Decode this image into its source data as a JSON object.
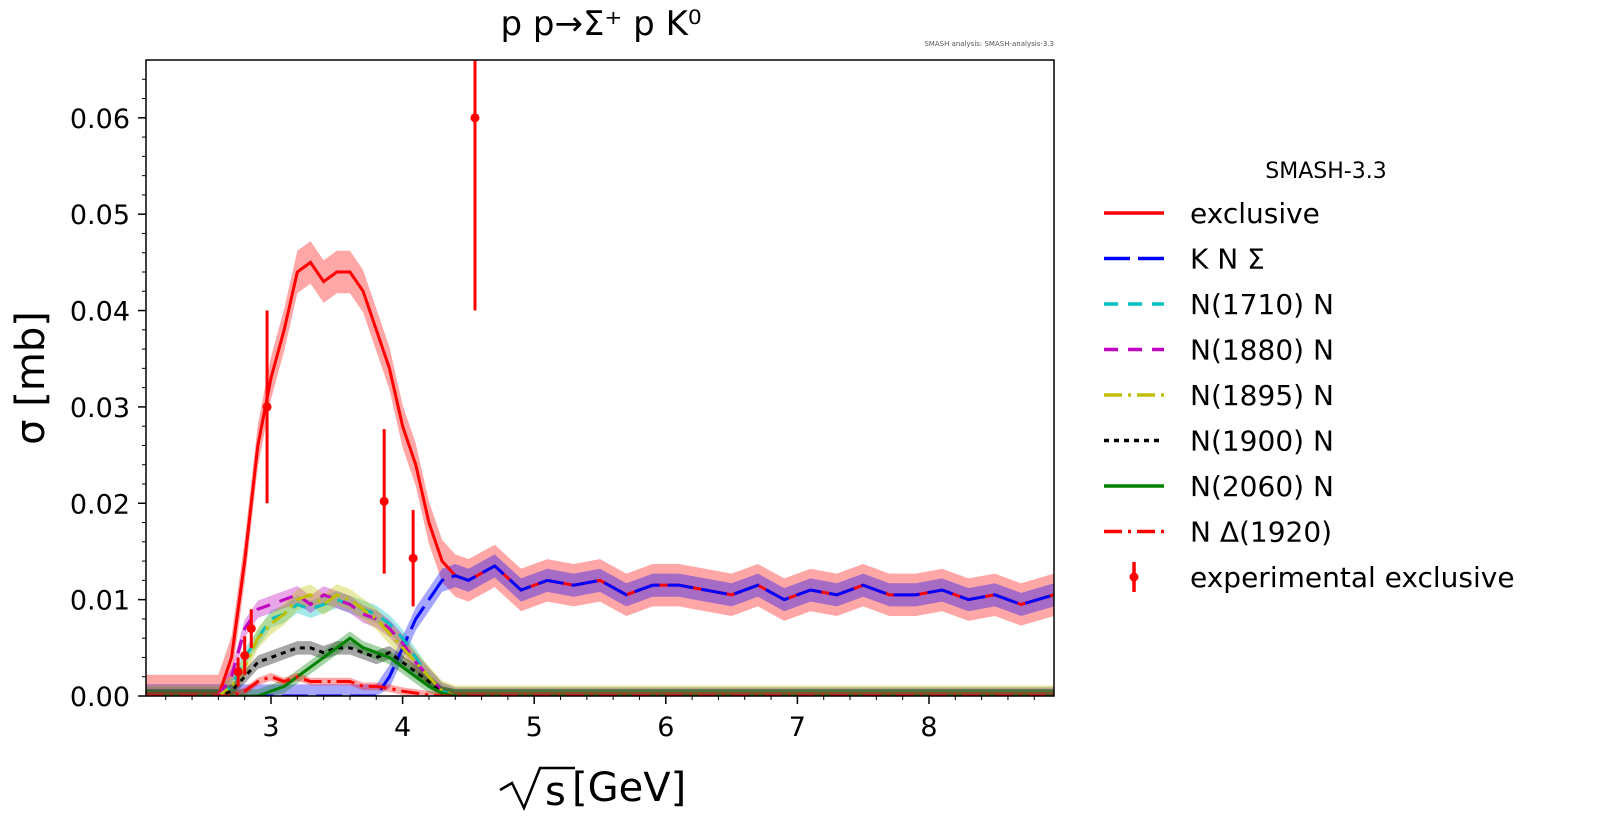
{
  "chart_data": {
    "type": "line",
    "title": "p p→Σ⁺ p K⁰",
    "watermark": "SMASH analysis: SMASH-analysis-3.3",
    "xlabel": "[GeV]",
    "xlabel_symbol": "s",
    "ylabel": "σ [mb]",
    "xlim": [
      2.05,
      8.95
    ],
    "ylim": [
      0.0,
      0.066
    ],
    "xticks": [
      3,
      4,
      5,
      6,
      7,
      8
    ],
    "xtick_labels": [
      "3",
      "4",
      "5",
      "6",
      "7",
      "8"
    ],
    "yticks": [
      0.0,
      0.01,
      0.02,
      0.03,
      0.04,
      0.05,
      0.06
    ],
    "ytick_labels": [
      "0.00",
      "0.01",
      "0.02",
      "0.03",
      "0.04",
      "0.05",
      "0.06"
    ],
    "legend_title": "SMASH-3.3",
    "series": [
      {
        "name": "exclusive",
        "color": "#ff0000",
        "dash": "solid",
        "x": [
          2.05,
          2.6,
          2.7,
          2.8,
          2.9,
          3.0,
          3.1,
          3.2,
          3.3,
          3.4,
          3.5,
          3.6,
          3.7,
          3.8,
          3.9,
          4.0,
          4.1,
          4.2,
          4.3,
          4.4,
          4.5,
          4.7,
          4.9,
          5.1,
          5.3,
          5.5,
          5.7,
          5.9,
          6.1,
          6.3,
          6.5,
          6.7,
          6.9,
          7.1,
          7.3,
          7.5,
          7.7,
          7.9,
          8.1,
          8.3,
          8.5,
          8.7,
          8.95
        ],
        "y": [
          0.0,
          0.0,
          0.004,
          0.014,
          0.026,
          0.033,
          0.038,
          0.044,
          0.045,
          0.043,
          0.044,
          0.044,
          0.042,
          0.038,
          0.034,
          0.028,
          0.024,
          0.018,
          0.014,
          0.0125,
          0.012,
          0.0135,
          0.011,
          0.012,
          0.0115,
          0.012,
          0.0105,
          0.0115,
          0.0115,
          0.011,
          0.0105,
          0.0115,
          0.01,
          0.011,
          0.0105,
          0.0115,
          0.0105,
          0.0105,
          0.011,
          0.01,
          0.0105,
          0.0095,
          0.0105
        ],
        "band": 0.0022
      },
      {
        "name": "K N Σ",
        "color": "#0000ff",
        "dash": "long-dash",
        "x": [
          2.05,
          3.8,
          3.9,
          4.0,
          4.1,
          4.2,
          4.3,
          4.4,
          4.5,
          4.7,
          4.9,
          5.1,
          5.3,
          5.5,
          5.7,
          5.9,
          6.1,
          6.3,
          6.5,
          6.7,
          6.9,
          7.1,
          7.3,
          7.5,
          7.7,
          7.9,
          8.1,
          8.3,
          8.5,
          8.7,
          8.95
        ],
        "y": [
          0.0,
          0.0,
          0.002,
          0.005,
          0.008,
          0.01,
          0.012,
          0.0125,
          0.012,
          0.0135,
          0.011,
          0.012,
          0.0115,
          0.012,
          0.0105,
          0.0115,
          0.0115,
          0.011,
          0.0105,
          0.0115,
          0.01,
          0.011,
          0.0105,
          0.0115,
          0.0105,
          0.0105,
          0.011,
          0.01,
          0.0105,
          0.0095,
          0.0105
        ],
        "band": 0.0012
      },
      {
        "name": "N(1710) N",
        "color": "#00bfbf",
        "dash": "dash",
        "x": [
          2.05,
          2.6,
          2.7,
          2.8,
          2.9,
          3.0,
          3.1,
          3.2,
          3.3,
          3.4,
          3.5,
          3.6,
          3.7,
          3.8,
          3.9,
          4.0,
          4.1,
          4.2,
          4.3,
          4.4,
          8.95
        ],
        "y": [
          0.0,
          0.0,
          0.001,
          0.004,
          0.006,
          0.008,
          0.0085,
          0.0095,
          0.009,
          0.0095,
          0.01,
          0.0095,
          0.009,
          0.0085,
          0.0075,
          0.006,
          0.004,
          0.002,
          0.0005,
          0.0,
          0.0
        ],
        "band": 0.0009
      },
      {
        "name": "N(1880) N",
        "color": "#bf00bf",
        "dash": "dash",
        "x": [
          2.05,
          2.6,
          2.7,
          2.8,
          2.9,
          3.0,
          3.1,
          3.2,
          3.3,
          3.4,
          3.5,
          3.6,
          3.7,
          3.8,
          3.9,
          4.0,
          4.1,
          4.2,
          4.3,
          4.4,
          8.95
        ],
        "y": [
          0.0,
          0.0,
          0.002,
          0.007,
          0.009,
          0.0095,
          0.01,
          0.0105,
          0.0095,
          0.0105,
          0.01,
          0.0095,
          0.0085,
          0.008,
          0.007,
          0.0055,
          0.0035,
          0.002,
          0.0005,
          0.0,
          0.0
        ],
        "band": 0.0009
      },
      {
        "name": "N(1895) N",
        "color": "#bfbf00",
        "dash": "dash-dot",
        "x": [
          2.05,
          2.6,
          2.7,
          2.8,
          2.9,
          3.0,
          3.1,
          3.2,
          3.3,
          3.4,
          3.5,
          3.6,
          3.7,
          3.8,
          3.9,
          4.0,
          4.1,
          4.2,
          4.3,
          4.4,
          8.95
        ],
        "y": [
          0.0,
          0.0,
          0.001,
          0.003,
          0.006,
          0.0075,
          0.0085,
          0.01,
          0.0105,
          0.0095,
          0.0105,
          0.01,
          0.009,
          0.008,
          0.0065,
          0.005,
          0.0035,
          0.002,
          0.0005,
          0.0,
          0.0
        ],
        "band": 0.0011
      },
      {
        "name": "N(1900) N",
        "color": "#000000",
        "dash": "dot",
        "x": [
          2.05,
          2.6,
          2.7,
          2.8,
          2.9,
          3.0,
          3.1,
          3.2,
          3.3,
          3.4,
          3.5,
          3.6,
          3.7,
          3.8,
          3.9,
          4.0,
          4.1,
          4.2,
          4.3,
          4.4,
          8.95
        ],
        "y": [
          0.0,
          0.0,
          0.0005,
          0.002,
          0.0035,
          0.004,
          0.0045,
          0.005,
          0.005,
          0.0045,
          0.005,
          0.005,
          0.0045,
          0.004,
          0.0045,
          0.0035,
          0.0025,
          0.0015,
          0.0003,
          0.0,
          0.0
        ],
        "band": 0.0007
      },
      {
        "name": "N(2060) N",
        "color": "#008000",
        "dash": "solid",
        "x": [
          2.05,
          2.9,
          3.0,
          3.1,
          3.2,
          3.3,
          3.4,
          3.5,
          3.6,
          3.7,
          3.8,
          3.9,
          4.0,
          4.1,
          4.2,
          4.3,
          4.4,
          8.95
        ],
        "y": [
          0.0,
          0.0,
          0.0005,
          0.001,
          0.002,
          0.003,
          0.004,
          0.005,
          0.006,
          0.005,
          0.0045,
          0.004,
          0.003,
          0.002,
          0.001,
          0.0003,
          0.0,
          0.0
        ],
        "band": 0.0007
      },
      {
        "name": "N Δ(1920)",
        "color": "#ff0000",
        "dash": "dash-dot",
        "x": [
          2.05,
          2.7,
          2.8,
          2.9,
          3.0,
          3.1,
          3.2,
          3.3,
          3.4,
          3.5,
          3.6,
          3.7,
          3.8,
          3.9,
          4.0,
          4.1,
          4.2,
          4.3,
          8.95
        ],
        "y": [
          0.0,
          0.0,
          0.0005,
          0.0015,
          0.002,
          0.0015,
          0.002,
          0.0015,
          0.0015,
          0.0015,
          0.0015,
          0.001,
          0.001,
          0.0008,
          0.0005,
          0.0003,
          0.0001,
          0.0,
          0.0
        ],
        "band": 0.0004
      }
    ],
    "experimental": {
      "name": "experimental exclusive",
      "color": "#ff0000",
      "points": [
        {
          "x": 2.75,
          "y": 0.0025,
          "err": 0.0015
        },
        {
          "x": 2.8,
          "y": 0.0042,
          "err": 0.002
        },
        {
          "x": 2.85,
          "y": 0.007,
          "err": 0.002
        },
        {
          "x": 2.97,
          "y": 0.03,
          "err": 0.01
        },
        {
          "x": 3.86,
          "y": 0.0202,
          "err": 0.0075
        },
        {
          "x": 4.08,
          "y": 0.0143,
          "err": 0.005
        },
        {
          "x": 4.55,
          "y": 0.06,
          "err": 0.02
        }
      ]
    }
  }
}
